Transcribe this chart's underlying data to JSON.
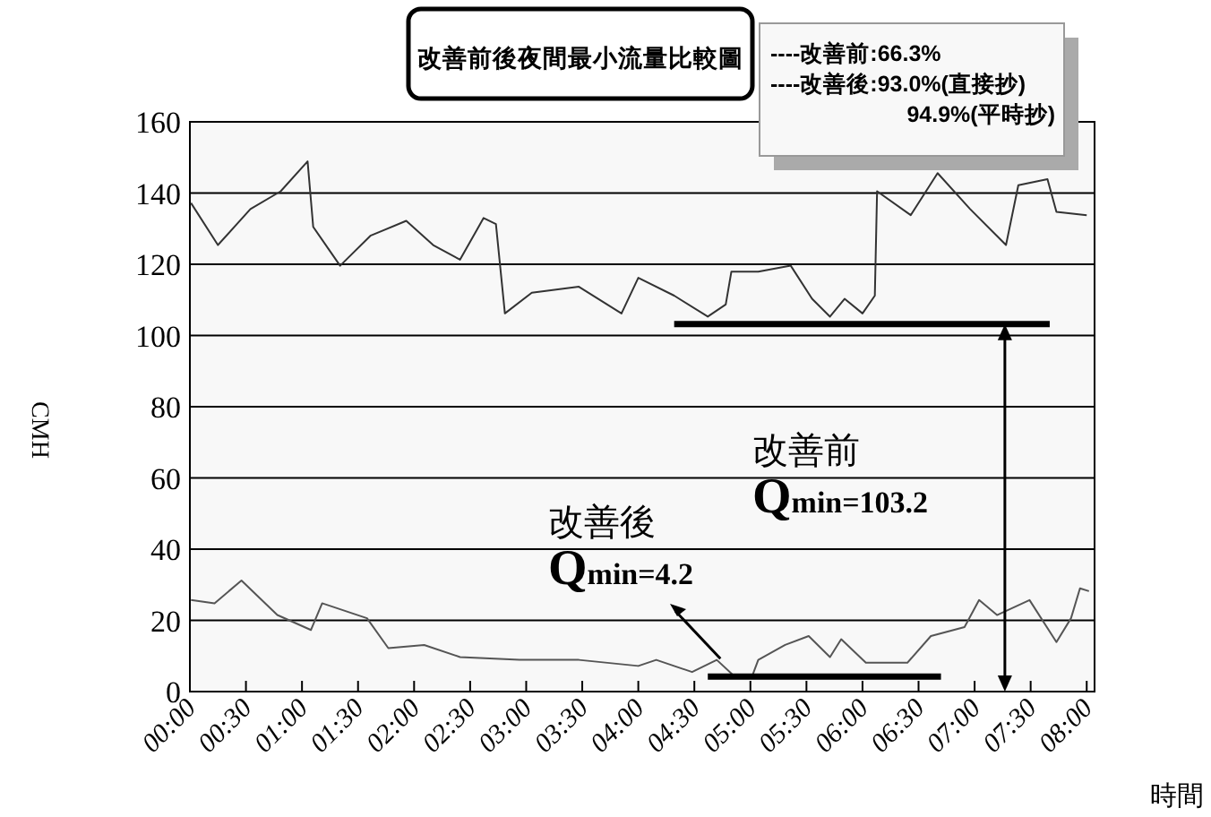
{
  "chart_data": {
    "type": "line",
    "title": "改善前後夜間最小流量比較圖",
    "xlabel": "時間",
    "ylabel": "CMH",
    "xlim": [
      0,
      8.07
    ],
    "ylim": [
      0,
      160
    ],
    "yticks": [
      0,
      20,
      40,
      60,
      80,
      100,
      120,
      140,
      160
    ],
    "xticks": [
      {
        "value": 0,
        "label": "00:00"
      },
      {
        "value": 0.5,
        "label": "00:30"
      },
      {
        "value": 1,
        "label": "01:00"
      },
      {
        "value": 1.5,
        "label": "01:30"
      },
      {
        "value": 2,
        "label": "02:00"
      },
      {
        "value": 2.5,
        "label": "02:30"
      },
      {
        "value": 3,
        "label": "03:00"
      },
      {
        "value": 3.5,
        "label": "03:30"
      },
      {
        "value": 4,
        "label": "04:00"
      },
      {
        "value": 4.5,
        "label": "04:30"
      },
      {
        "value": 5,
        "label": "05:00"
      },
      {
        "value": 5.5,
        "label": "05:30"
      },
      {
        "value": 6,
        "label": "06:00"
      },
      {
        "value": 6.5,
        "label": "06:30"
      },
      {
        "value": 7,
        "label": "07:00"
      },
      {
        "value": 7.5,
        "label": "07:30"
      },
      {
        "value": 8,
        "label": "08:00"
      }
    ],
    "grid": "y",
    "marker": "none",
    "line_style": "solid",
    "series": [
      {
        "color": "#333333",
        "x": [
          0.01,
          0.25,
          0.54,
          0.81,
          1.05,
          1.1,
          1.34,
          1.61,
          1.93,
          2.17,
          2.41,
          2.62,
          2.73,
          2.81,
          3.05,
          3.47,
          3.85,
          4.0,
          4.32,
          4.62,
          4.78,
          4.83,
          5.07,
          5.36,
          5.55,
          5.71,
          5.84,
          6.0,
          6.11,
          6.13,
          6.43,
          6.67,
          6.96,
          7.28,
          7.39,
          7.65,
          7.73,
          8.0
        ],
        "values": [
          137.2,
          125.4,
          135.5,
          140.5,
          148.9,
          130.5,
          119.6,
          128,
          132.2,
          125.4,
          121.3,
          133,
          131.3,
          106.2,
          112,
          113.7,
          106.2,
          116.2,
          111.2,
          105.3,
          108.7,
          117.9,
          117.9,
          119.6,
          110.3,
          105.3,
          110.3,
          106.2,
          111.2,
          140.5,
          133.8,
          145.6,
          135.5,
          125.4,
          142.2,
          143.9,
          134.7,
          133.8
        ]
      },
      {
        "color": "#555555",
        "x": [
          0.01,
          0.22,
          0.46,
          0.78,
          1.08,
          1.18,
          1.58,
          1.77,
          2.09,
          2.41,
          2.94,
          3.47,
          4.0,
          4.16,
          4.48,
          4.7,
          4.86,
          5.02,
          5.07,
          5.31,
          5.52,
          5.71,
          5.81,
          6.03,
          6.4,
          6.61,
          6.91,
          7.04,
          7.2,
          7.49,
          7.73,
          7.86,
          7.94,
          8.02
        ],
        "values": [
          25.7,
          24.8,
          31.2,
          21.5,
          17.3,
          24.8,
          20.6,
          12.2,
          13.1,
          9.7,
          8.9,
          8.9,
          7.2,
          8.9,
          5.5,
          8.9,
          4.2,
          4.7,
          8.9,
          13.1,
          15.6,
          9.7,
          14.7,
          8.1,
          8.1,
          15.6,
          18.1,
          25.7,
          21.5,
          25.7,
          13.9,
          20.6,
          29,
          28.2
        ]
      },
      {
        "color": "#000000",
        "x": [
          4.32,
          7.67
        ],
        "values": [
          103.2,
          103.2
        ]
      },
      {
        "color": "#000000",
        "x": [
          4.62,
          6.7
        ],
        "values": [
          4.2,
          4.2
        ]
      }
    ],
    "annotations": [
      "----改善前:66.3%",
      "----改善後:93.0%(直接抄)",
      "94.9%(平時抄)",
      {
        "text": "改善前\nQmin=103.2",
        "x": 7.27,
        "y": 103.2
      },
      {
        "text": "改善後\nQmin=4.2",
        "x": 4.86,
        "y": 4.2
      }
    ]
  }
}
